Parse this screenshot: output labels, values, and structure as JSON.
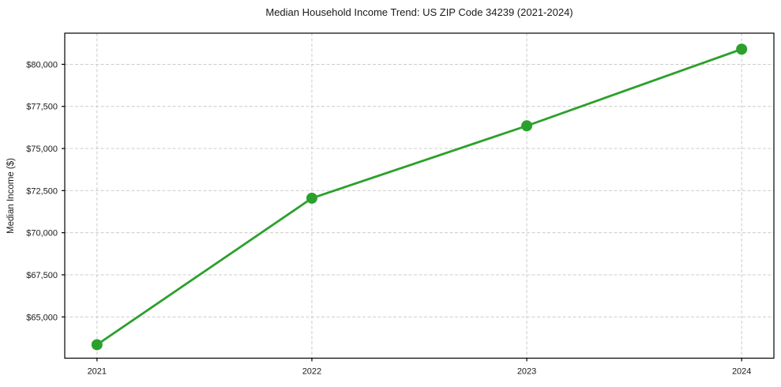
{
  "chart_data": {
    "type": "line",
    "title": "Median Household Income Trend: US ZIP Code 34239 (2021-2024)",
    "xlabel": "",
    "ylabel": "Median Income ($)",
    "x": [
      2021,
      2022,
      2023,
      2024
    ],
    "values": [
      63350,
      72050,
      76350,
      80900
    ],
    "xtick_labels": [
      "2021",
      "2022",
      "2023",
      "2024"
    ],
    "ytick_values": [
      65000,
      67500,
      70000,
      72500,
      75000,
      77500,
      80000
    ],
    "ytick_labels": [
      "$65,000",
      "$67,500",
      "$70,000",
      "$72,500",
      "$75,000",
      "$77,500",
      "$80,000"
    ],
    "xlim": [
      2020.85,
      2024.15
    ],
    "ylim": [
      62550,
      81850
    ],
    "grid": true,
    "legend_position": "none",
    "colors": {
      "line": "#2ca02c",
      "marker": "#2ca02c",
      "grid": "#cccccc",
      "spine": "#000000",
      "text": "#1a1a1a",
      "background": "#ffffff"
    }
  }
}
